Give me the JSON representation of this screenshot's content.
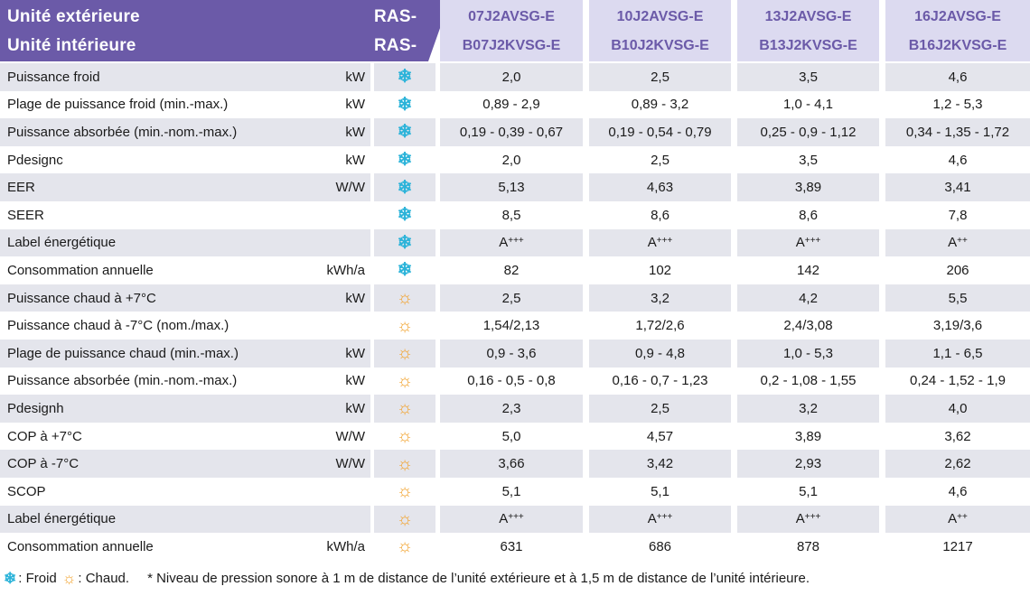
{
  "header": {
    "outdoor_label": "Unité extérieure",
    "indoor_label": "Unité intérieure",
    "outdoor_prefix": "RAS-",
    "indoor_prefix": "RAS-",
    "models": [
      {
        "outdoor": "07J2AVSG-E",
        "indoor": "B07J2KVSG-E"
      },
      {
        "outdoor": "10J2AVSG-E",
        "indoor": "B10J2KVSG-E"
      },
      {
        "outdoor": "13J2AVSG-E",
        "indoor": "B13J2KVSG-E"
      },
      {
        "outdoor": "16J2AVSG-E",
        "indoor": "B16J2KVSG-E"
      }
    ]
  },
  "colors": {
    "header_bg": "#6b5aa8",
    "model_bg": "#dcdaf0",
    "row_shade": "#e4e5ec",
    "cold": "#2bb3d9",
    "warm": "#f2a32e"
  },
  "rows": [
    {
      "label": "Puissance froid",
      "unit": "kW",
      "mode": "cold",
      "values": [
        "2,0",
        "2,5",
        "3,5",
        "4,6"
      ]
    },
    {
      "label": "Plage de puissance froid (min.-max.)",
      "unit": "kW",
      "mode": "cold",
      "values": [
        "0,89 - 2,9",
        "0,89 - 3,2",
        "1,0 - 4,1",
        "1,2 - 5,3"
      ]
    },
    {
      "label": "Puissance absorbée (min.-nom.-max.)",
      "unit": "kW",
      "mode": "cold",
      "values": [
        "0,19 - 0,39 - 0,67",
        "0,19 - 0,54 - 0,79",
        "0,25 - 0,9 - 1,12",
        "0,34 - 1,35 - 1,72"
      ]
    },
    {
      "label": "Pdesignc",
      "unit": "kW",
      "mode": "cold",
      "values": [
        "2,0",
        "2,5",
        "3,5",
        "4,6"
      ]
    },
    {
      "label": "EER",
      "unit": "W/W",
      "mode": "cold",
      "values": [
        "5,13",
        "4,63",
        "3,89",
        "3,41"
      ]
    },
    {
      "label": "SEER",
      "unit": "",
      "mode": "cold",
      "values": [
        "8,5",
        "8,6",
        "8,6",
        "7,8"
      ]
    },
    {
      "label": "Label énergétique",
      "unit": "",
      "mode": "cold",
      "values": [
        "A",
        "A",
        "A",
        "A"
      ],
      "sup": [
        "+++",
        "+++",
        "+++",
        "++"
      ]
    },
    {
      "label": "Consommation annuelle",
      "unit": "kWh/a",
      "mode": "cold",
      "values": [
        "82",
        "102",
        "142",
        "206"
      ]
    },
    {
      "label": "Puissance chaud à +7°C",
      "unit": "kW",
      "mode": "warm",
      "values": [
        "2,5",
        "3,2",
        "4,2",
        "5,5"
      ]
    },
    {
      "label": "Puissance chaud à -7°C (nom./max.)",
      "unit": "",
      "mode": "warm",
      "values": [
        "1,54/2,13",
        "1,72/2,6",
        "2,4/3,08",
        "3,19/3,6"
      ]
    },
    {
      "label": "Plage de puissance chaud (min.-max.)",
      "unit": "kW",
      "mode": "warm",
      "values": [
        "0,9 - 3,6",
        "0,9 - 4,8",
        "1,0 - 5,3",
        "1,1 - 6,5"
      ]
    },
    {
      "label": "Puissance absorbée (min.-nom.-max.)",
      "unit": "kW",
      "mode": "warm",
      "values": [
        "0,16 - 0,5 - 0,8",
        "0,16 - 0,7 - 1,23",
        "0,2 - 1,08 - 1,55",
        "0,24 - 1,52 - 1,9"
      ]
    },
    {
      "label": "Pdesignh",
      "unit": "kW",
      "mode": "warm",
      "values": [
        "2,3",
        "2,5",
        "3,2",
        "4,0"
      ]
    },
    {
      "label": "COP à +7°C",
      "unit": "W/W",
      "mode": "warm",
      "values": [
        "5,0",
        "4,57",
        "3,89",
        "3,62"
      ]
    },
    {
      "label": "COP à -7°C",
      "unit": "W/W",
      "mode": "warm",
      "values": [
        "3,66",
        "3,42",
        "2,93",
        "2,62"
      ]
    },
    {
      "label": "SCOP",
      "unit": "",
      "mode": "warm",
      "values": [
        "5,1",
        "5,1",
        "5,1",
        "4,6"
      ]
    },
    {
      "label": "Label énergétique",
      "unit": "",
      "mode": "warm",
      "values": [
        "A",
        "A",
        "A",
        "A"
      ],
      "sup": [
        "+++",
        "+++",
        "+++",
        "++"
      ]
    },
    {
      "label": "Consommation annuelle",
      "unit": "kWh/a",
      "mode": "warm",
      "values": [
        "631",
        "686",
        "878",
        "1217"
      ]
    }
  ],
  "icons": {
    "cold": "snowflake-icon",
    "warm": "sun-icon"
  },
  "footer": {
    "cold_legend": ": Froid",
    "warm_legend": ": Chaud.",
    "note": "* Niveau de pression sonore à 1 m de distance de l’unité extérieure et à 1,5 m de distance de l’unité intérieure."
  }
}
